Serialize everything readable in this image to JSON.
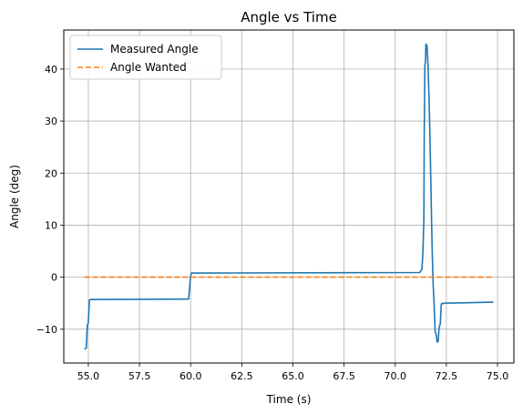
{
  "chart_data": {
    "type": "line",
    "title": "Angle vs Time",
    "xlabel": "Time (s)",
    "ylabel": "Angle (deg)",
    "xlim": [
      53.8,
      75.8
    ],
    "ylim": [
      -16.5,
      47.5
    ],
    "xticks": [
      55.0,
      57.5,
      60.0,
      62.5,
      65.0,
      67.5,
      70.0,
      72.5,
      75.0
    ],
    "xtick_labels": [
      "55.0",
      "57.5",
      "60.0",
      "62.5",
      "65.0",
      "67.5",
      "70.0",
      "72.5",
      "75.0"
    ],
    "yticks": [
      -10,
      0,
      10,
      20,
      30,
      40
    ],
    "ytick_labels": [
      "−10",
      "0",
      "10",
      "20",
      "30",
      "40"
    ],
    "grid": true,
    "legend": "top-left",
    "series": [
      {
        "name": "Measured Angle",
        "color": "#1f77b4",
        "style": "solid",
        "x": [
          54.8,
          54.9,
          54.95,
          55.0,
          55.05,
          55.1,
          59.9,
          59.95,
          60.0,
          60.05,
          71.2,
          71.3,
          71.35,
          71.4,
          71.42,
          71.45,
          71.48,
          71.5,
          71.55,
          71.6,
          71.65,
          71.7,
          71.75,
          71.8,
          71.85,
          71.9,
          71.95,
          72.0,
          72.05,
          72.1,
          72.15,
          72.2,
          72.25,
          72.3,
          72.35,
          72.4,
          74.8
        ],
        "y": [
          -13.8,
          -13.6,
          -9.2,
          -8.8,
          -4.4,
          -4.3,
          -4.2,
          -2.0,
          0.3,
          0.8,
          0.9,
          1.5,
          4.5,
          11.0,
          27.5,
          40.5,
          41.5,
          44.8,
          44.5,
          41.0,
          35.0,
          27.0,
          16.0,
          6.0,
          -1.0,
          -5.0,
          -10.5,
          -11.0,
          -12.5,
          -12.3,
          -9.5,
          -9.0,
          -5.2,
          -5.0,
          -5.1,
          -5.0,
          -4.8
        ]
      },
      {
        "name": "Angle Wanted",
        "color": "#ff7f0e",
        "style": "dashed",
        "x": [
          54.8,
          74.8
        ],
        "y": [
          0.0,
          0.0
        ]
      }
    ]
  }
}
